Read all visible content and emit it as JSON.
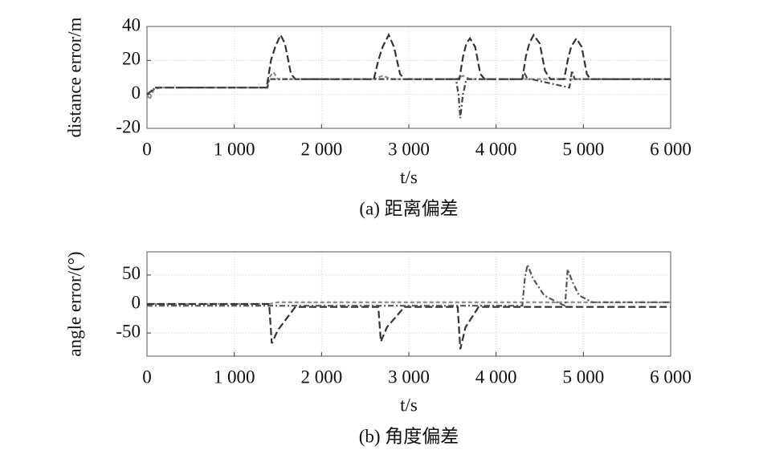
{
  "chart_data": [
    {
      "type": "line",
      "ylabel": "distance error/m",
      "xlabel": "t/s",
      "caption": "(a) 距离偏差",
      "xlim": [
        0,
        6000
      ],
      "ylim": [
        -20,
        40
      ],
      "xticks": [
        0,
        {
          "value": 1000,
          "label": "1 000"
        },
        {
          "value": 2000,
          "label": "2 000"
        },
        {
          "value": 3000,
          "label": "3 000"
        },
        {
          "value": 4000,
          "label": "4 000"
        },
        {
          "value": 5000,
          "label": "5 000"
        },
        {
          "value": 6000,
          "label": "6 000"
        }
      ],
      "yticks": [
        -20,
        0,
        20,
        40
      ],
      "grid": true,
      "series": [
        {
          "color": "#8a8a8a",
          "dash": "5,3",
          "x": [
            0,
            30,
            80,
            150,
            1380,
            1400,
            1450,
            1500,
            2600,
            2700,
            2800,
            3550,
            3620,
            3700,
            6000
          ],
          "values": [
            0,
            -3,
            3,
            4,
            4,
            10,
            13,
            9,
            9,
            11,
            9,
            9,
            11,
            9,
            9
          ]
        },
        {
          "color": "#333333",
          "dash": "9,4",
          "x": [
            0,
            100,
            1370,
            1390,
            1420,
            1470,
            1530,
            1580,
            1650,
            1700,
            2600,
            2650,
            2700,
            2770,
            2830,
            2900,
            2950,
            3580,
            3620,
            3660,
            3700,
            3760,
            3820,
            3870,
            4300,
            4340,
            4380,
            4430,
            4500,
            4560,
            4620,
            4780,
            4820,
            4860,
            4920,
            4980,
            5040,
            5080,
            6000
          ],
          "values": [
            0,
            4,
            4,
            10,
            20,
            28,
            35,
            30,
            12,
            9,
            9,
            20,
            28,
            35,
            28,
            12,
            9,
            9,
            22,
            30,
            33,
            28,
            12,
            9,
            9,
            22,
            30,
            35,
            30,
            14,
            9,
            9,
            20,
            28,
            33,
            28,
            12,
            9,
            9
          ]
        },
        {
          "color": "#444444",
          "dash": "7,3,2,3",
          "x": [
            0,
            100,
            1380,
            1400,
            3540,
            3570,
            3590,
            3620,
            3660,
            4300,
            4330,
            4360,
            4400,
            4840,
            4870,
            4900,
            6000
          ],
          "values": [
            0,
            4,
            4,
            9,
            9,
            0,
            -14,
            0,
            9,
            9,
            12,
            9,
            9,
            4,
            14,
            9,
            9
          ]
        }
      ]
    },
    {
      "type": "line",
      "ylabel": "angle error/(°)",
      "xlabel": "t/s",
      "caption": "(b) 角度偏差",
      "xlim": [
        0,
        6000
      ],
      "ylim": [
        -90,
        90
      ],
      "xticks": [
        0,
        {
          "value": 1000,
          "label": "1 000"
        },
        {
          "value": 2000,
          "label": "2 000"
        },
        {
          "value": 3000,
          "label": "3 000"
        },
        {
          "value": 4000,
          "label": "4 000"
        },
        {
          "value": 5000,
          "label": "5 000"
        },
        {
          "value": 6000,
          "label": "6 000"
        }
      ],
      "yticks": [
        -50,
        0,
        50
      ],
      "grid": true,
      "series": [
        {
          "color": "#8a8a8a",
          "dash": "5,3",
          "x": [
            0,
            1400,
            1500,
            6000
          ],
          "values": [
            0,
            0,
            3,
            3
          ]
        },
        {
          "color": "#333333",
          "dash": "9,4",
          "x": [
            0,
            1400,
            1430,
            1500,
            1700,
            2650,
            2680,
            2750,
            2950,
            3560,
            3590,
            3650,
            3800,
            6000
          ],
          "values": [
            0,
            0,
            -68,
            -45,
            -5,
            -5,
            -65,
            -40,
            -5,
            -5,
            -78,
            -40,
            -5,
            -5
          ]
        },
        {
          "color": "#555555",
          "dash": "7,3,2,3",
          "x": [
            0,
            4300,
            4330,
            4360,
            4420,
            4550,
            4700,
            4790,
            4820,
            4870,
            4950,
            5100,
            6000
          ],
          "values": [
            -3,
            -3,
            45,
            68,
            45,
            15,
            3,
            -3,
            60,
            40,
            15,
            3,
            3
          ]
        }
      ]
    }
  ]
}
